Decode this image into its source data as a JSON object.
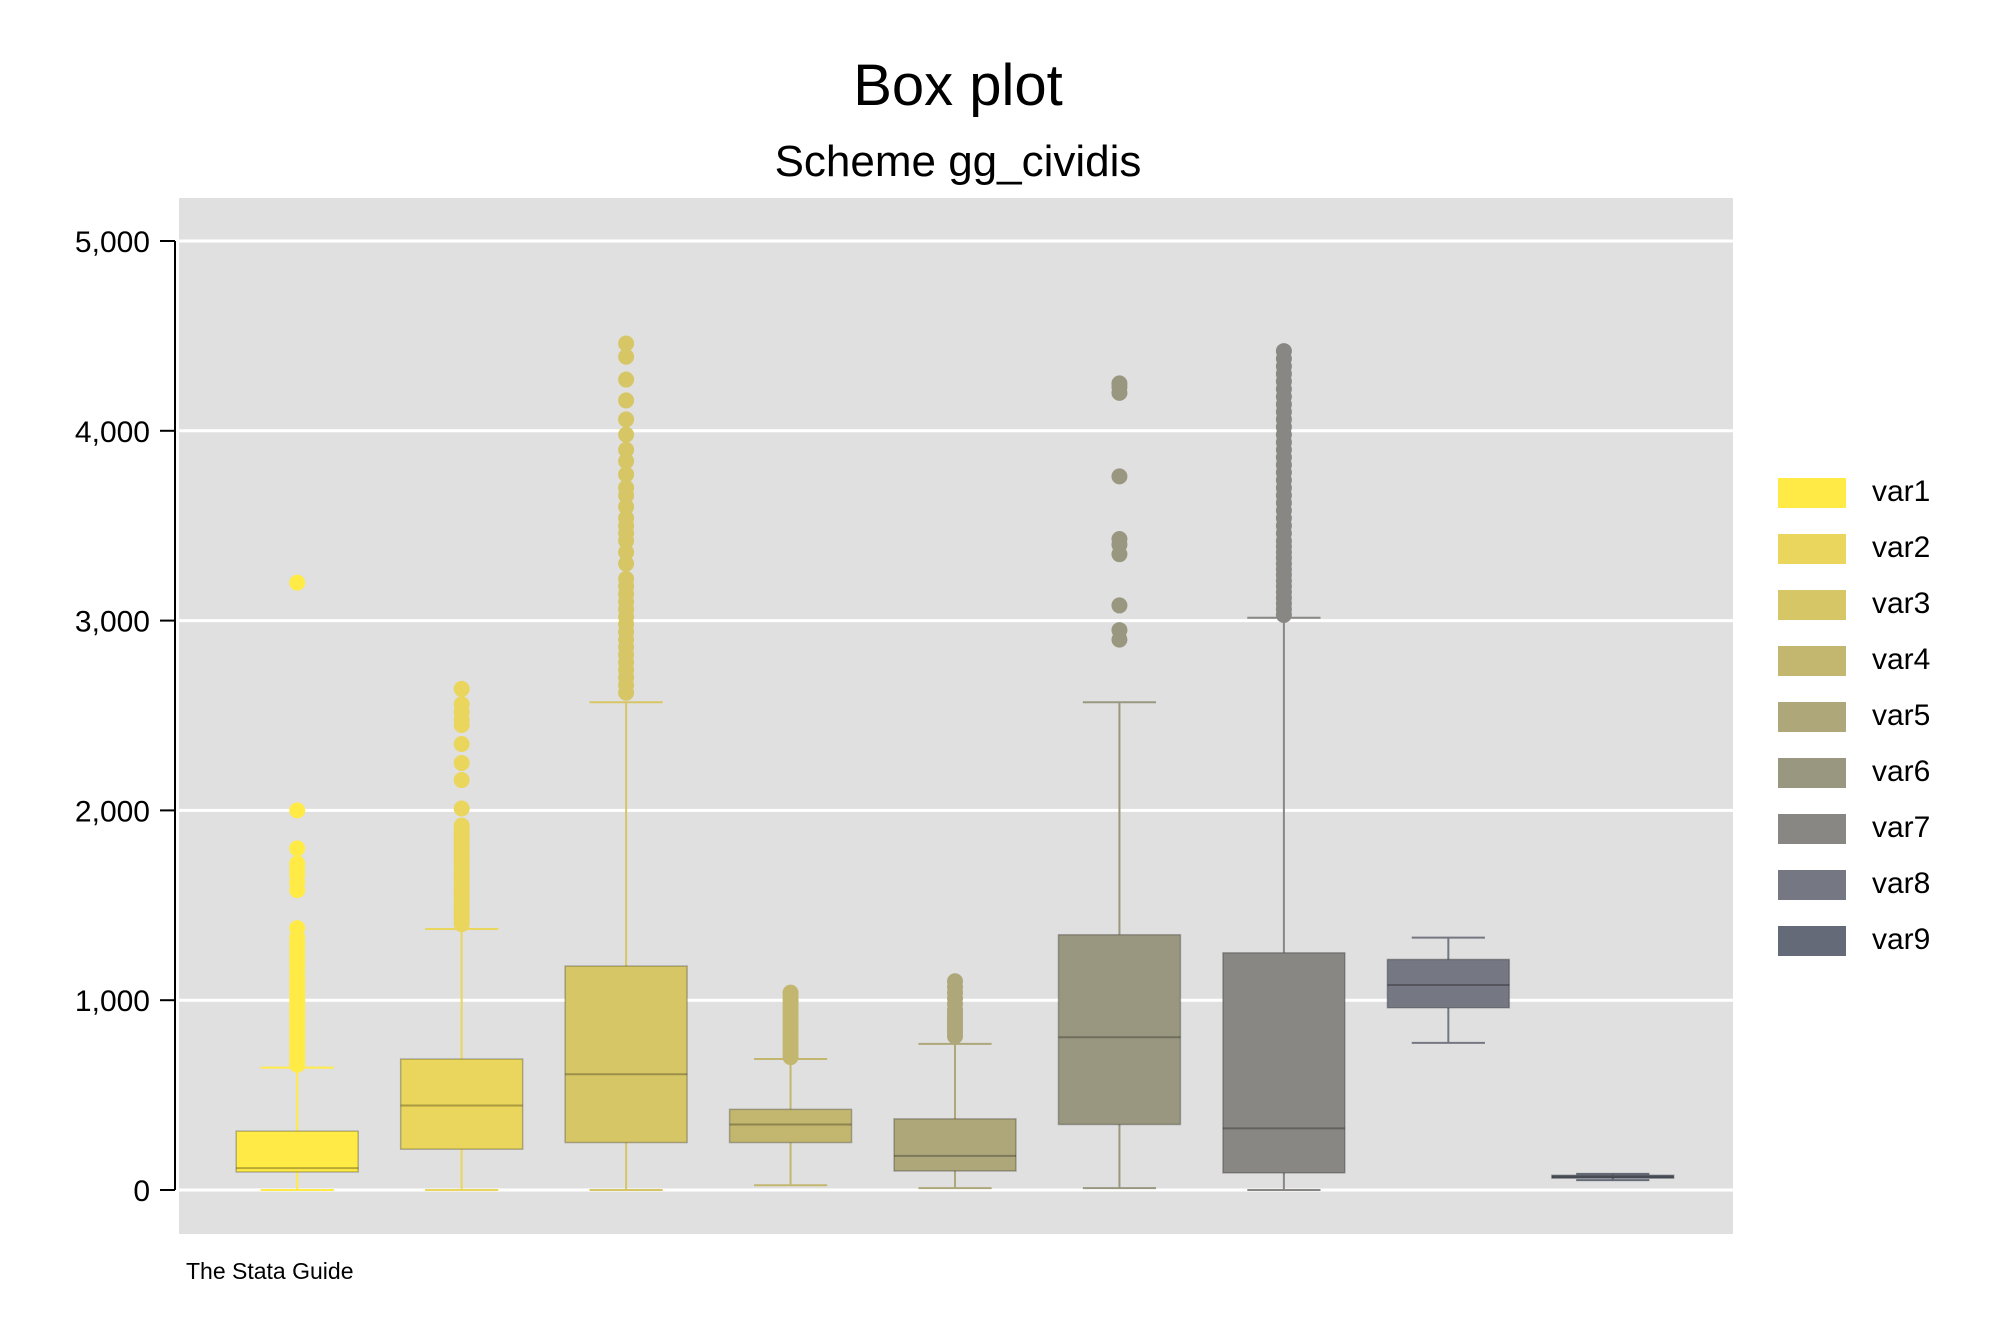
{
  "chart_data": {
    "type": "box",
    "title": "Box plot",
    "subtitle": "Scheme gg_cividis",
    "note": "The Stata Guide",
    "ylim": [
      0,
      5000
    ],
    "yticks": [
      0,
      1000,
      2000,
      3000,
      4000,
      5000
    ],
    "ytick_labels": [
      "0",
      "1,000",
      "2,000",
      "3,000",
      "4,000",
      "5,000"
    ],
    "grid": true,
    "legend_position": "right",
    "series": [
      {
        "name": "var1",
        "color": "#ffea46",
        "q1": 95,
        "median": 115,
        "q3": 310,
        "lower_whisker": 0,
        "upper_whisker": 645,
        "outliers": [
          660,
          680,
          700,
          720,
          740,
          760,
          780,
          800,
          820,
          840,
          860,
          880,
          900,
          920,
          940,
          960,
          980,
          1000,
          1020,
          1040,
          1060,
          1080,
          1100,
          1120,
          1150,
          1180,
          1210,
          1240,
          1270,
          1300,
          1330,
          1380,
          1580,
          1620,
          1660,
          1690,
          1720,
          1800,
          2000,
          3200
        ]
      },
      {
        "name": "var2",
        "color": "#ead65c",
        "q1": 215,
        "median": 445,
        "q3": 690,
        "lower_whisker": 0,
        "upper_whisker": 1375,
        "outliers": [
          1400,
          1420,
          1440,
          1460,
          1480,
          1500,
          1520,
          1540,
          1560,
          1580,
          1600,
          1620,
          1640,
          1660,
          1680,
          1700,
          1720,
          1740,
          1760,
          1780,
          1800,
          1820,
          1840,
          1860,
          1880,
          1900,
          1920,
          2010,
          2160,
          2250,
          2350,
          2450,
          2480,
          2520,
          2560,
          2640
        ]
      },
      {
        "name": "var3",
        "color": "#d7c666",
        "q1": 250,
        "median": 610,
        "q3": 1180,
        "lower_whisker": 0,
        "upper_whisker": 2570,
        "outliers": [
          2620,
          2660,
          2700,
          2740,
          2780,
          2820,
          2860,
          2900,
          2940,
          2980,
          3020,
          3060,
          3100,
          3140,
          3180,
          3220,
          3300,
          3360,
          3420,
          3460,
          3500,
          3540,
          3600,
          3660,
          3700,
          3770,
          3840,
          3900,
          3980,
          4060,
          4160,
          4270,
          4390,
          4460
        ]
      },
      {
        "name": "var4",
        "color": "#c3b770",
        "q1": 250,
        "median": 345,
        "q3": 425,
        "lower_whisker": 25,
        "upper_whisker": 690,
        "outliers": [
          700,
          720,
          740,
          760,
          780,
          800,
          820,
          840,
          860,
          880,
          900,
          920,
          940,
          960,
          980,
          1000,
          1020,
          1040
        ]
      },
      {
        "name": "var5",
        "color": "#ada77a",
        "q1": 100,
        "median": 180,
        "q3": 375,
        "lower_whisker": 10,
        "upper_whisker": 770,
        "outliers": [
          810,
          830,
          850,
          870,
          890,
          910,
          930,
          950,
          980,
          1010,
          1040,
          1070,
          1100
        ]
      },
      {
        "name": "var6",
        "color": "#9a9780",
        "q1": 345,
        "median": 805,
        "q3": 1345,
        "lower_whisker": 10,
        "upper_whisker": 2570,
        "outliers": [
          2900,
          2950,
          3080,
          3350,
          3400,
          3430,
          3760,
          4200,
          4230,
          4250
        ]
      },
      {
        "name": "var7",
        "color": "#888784",
        "q1": 90,
        "median": 325,
        "q3": 1250,
        "lower_whisker": 0,
        "upper_whisker": 3015,
        "outliers": [
          3030,
          3060,
          3090,
          3120,
          3150,
          3180,
          3210,
          3240,
          3270,
          3300,
          3330,
          3360,
          3390,
          3420,
          3460,
          3500,
          3540,
          3580,
          3620,
          3660,
          3700,
          3740,
          3780,
          3820,
          3860,
          3900,
          3940,
          3980,
          4020,
          4060,
          4100,
          4140,
          4180,
          4220,
          4260,
          4300,
          4340,
          4380,
          4420
        ]
      },
      {
        "name": "var8",
        "color": "#757782",
        "q1": 960,
        "median": 1080,
        "q3": 1215,
        "lower_whisker": 775,
        "upper_whisker": 1330,
        "outliers": []
      },
      {
        "name": "var9",
        "color": "#646a78",
        "q1": 62,
        "median": 70,
        "q3": 78,
        "lower_whisker": 52,
        "upper_whisker": 85,
        "outliers": []
      }
    ]
  }
}
